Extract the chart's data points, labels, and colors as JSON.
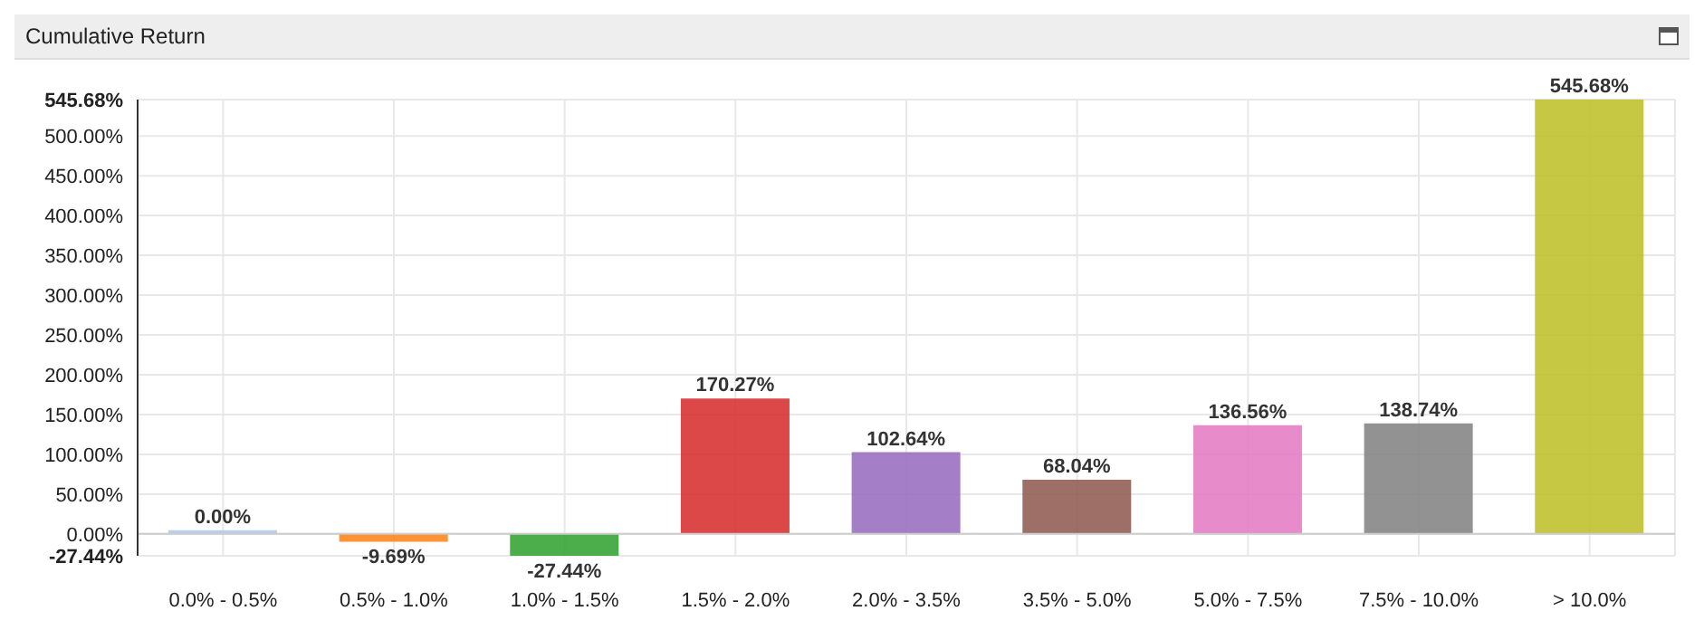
{
  "chart_data": {
    "type": "bar",
    "title": "Cumulative Return",
    "categories": [
      "0.0% - 0.5%",
      "0.5% - 1.0%",
      "1.0% - 1.5%",
      "1.5% - 2.0%",
      "2.0% - 3.5%",
      "3.5% - 5.0%",
      "5.0% - 7.5%",
      "7.5% - 10.0%",
      "> 10.0%"
    ],
    "values": [
      0,
      -9.69,
      -27.44,
      170.27,
      102.64,
      68.04,
      136.56,
      138.74,
      545.68
    ],
    "colors": [
      "#aec7e8",
      "#ff7f0e",
      "#2ca02c",
      "#d62728",
      "#9467bd",
      "#8c564b",
      "#e377c2",
      "#7f7f7f",
      "#bcbd22"
    ],
    "value_labels": [
      "0.00%",
      "-9.69%",
      "-27.44%",
      "170.27%",
      "102.64%",
      "68.04%",
      "136.56%",
      "138.74%",
      "545.68%"
    ],
    "ylim": [
      -27.44,
      545.68
    ],
    "yticks": [
      {
        "value": -27.44,
        "label": "-27.44%"
      },
      {
        "value": 0,
        "label": "0.00%"
      },
      {
        "value": 50,
        "label": "50.00%"
      },
      {
        "value": 100,
        "label": "100.00%"
      },
      {
        "value": 150,
        "label": "150.00%"
      },
      {
        "value": 200,
        "label": "200.00%"
      },
      {
        "value": 250,
        "label": "250.00%"
      },
      {
        "value": 300,
        "label": "300.00%"
      },
      {
        "value": 350,
        "label": "350.00%"
      },
      {
        "value": 400,
        "label": "400.00%"
      },
      {
        "value": 450,
        "label": "450.00%"
      },
      {
        "value": 500,
        "label": "500.00%"
      },
      {
        "value": 545.68,
        "label": "545.68%"
      }
    ],
    "grid": true
  }
}
